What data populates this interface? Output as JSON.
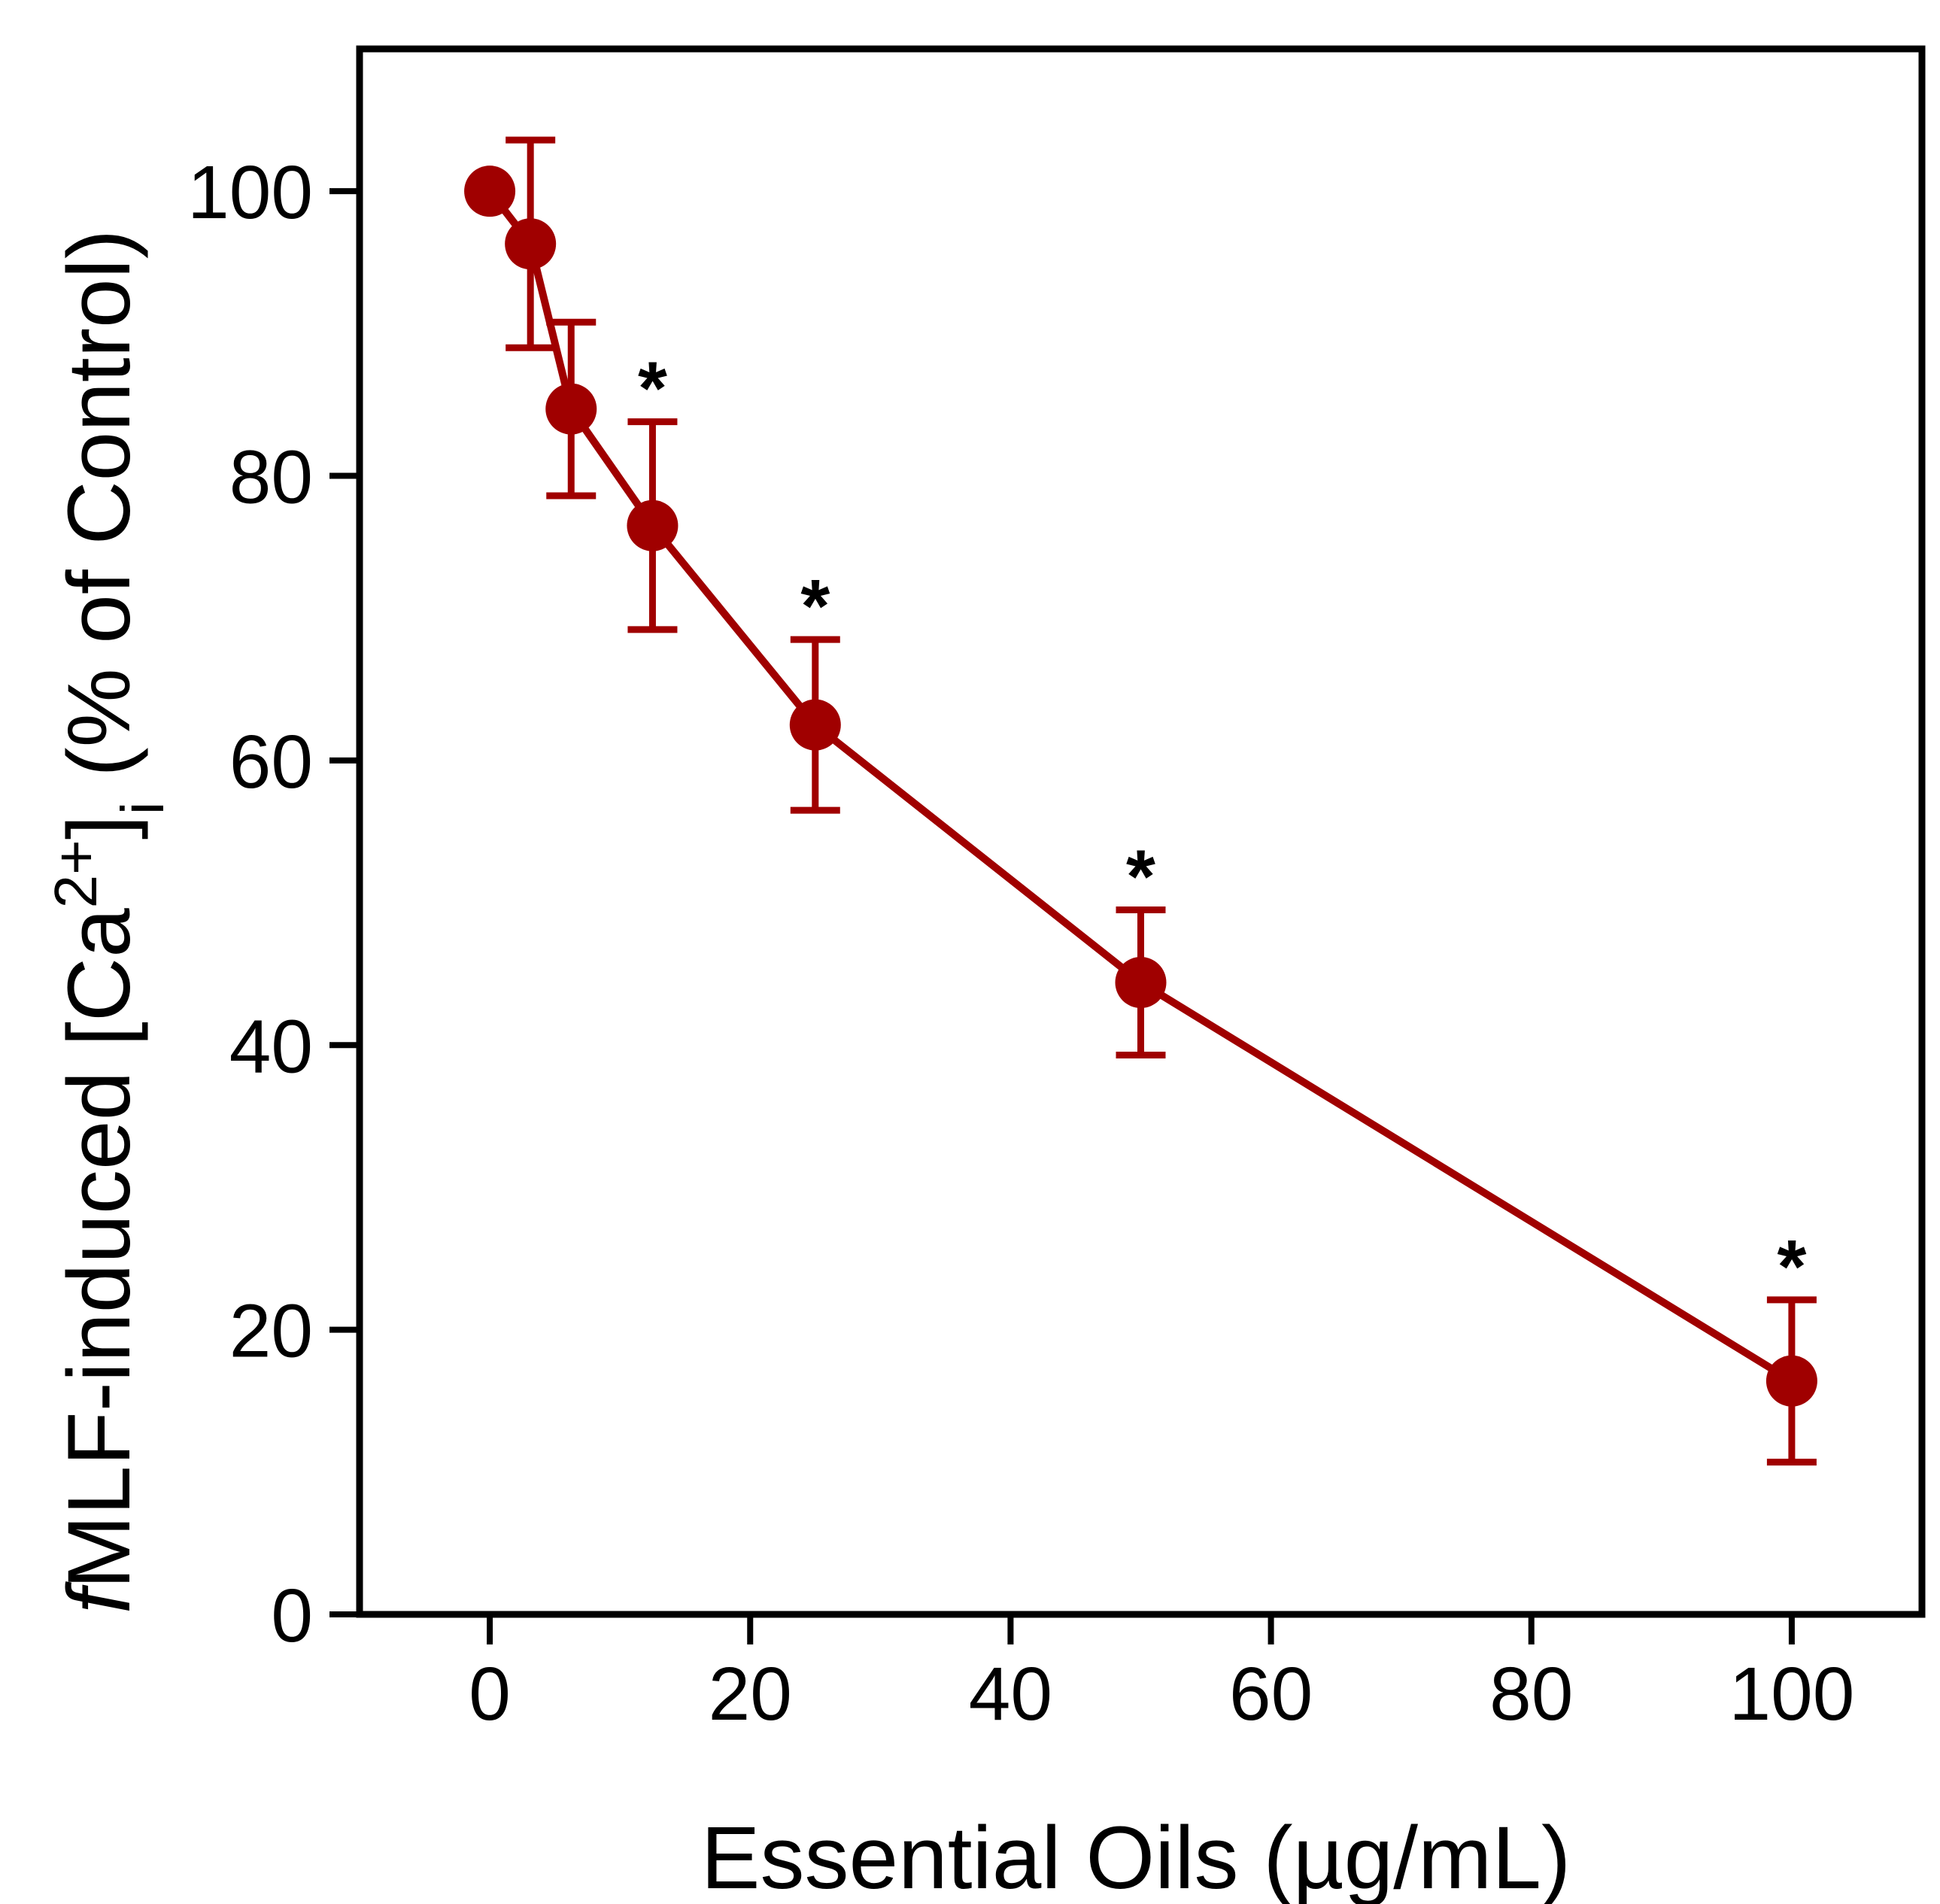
{
  "chart_data": {
    "type": "line",
    "title": "",
    "xlabel": "Essential Oils (µg/mL)",
    "ylabel": {
      "prefix": "f",
      "main": "MLF-induced [Ca",
      "superscript": "2+",
      "bracket": "]",
      "subscript": "i",
      "suffix": " (% of Control)"
    },
    "xlim": [
      -10,
      110
    ],
    "ylim": [
      0,
      110
    ],
    "xticks": [
      "0",
      "20",
      "40",
      "60",
      "80",
      "100"
    ],
    "yticks": [
      "0",
      "20",
      "40",
      "60",
      "80",
      "100"
    ],
    "xtick_values": [
      0,
      20,
      40,
      60,
      80,
      100
    ],
    "ytick_values": [
      0,
      20,
      40,
      60,
      80,
      100
    ],
    "grid": false,
    "color": "#a00000",
    "series": [
      {
        "name": "Essential Oils",
        "x": [
          0,
          3.125,
          6.25,
          12.5,
          25,
          50,
          100
        ],
        "y": [
          100,
          96.3,
          84.7,
          76.5,
          62.5,
          44.4,
          16.4
        ],
        "error": [
          0,
          7.3,
          6.1,
          7.3,
          6.0,
          5.1,
          5.7
        ],
        "significance": [
          "",
          "",
          "",
          "*",
          "*",
          "*",
          "*"
        ]
      }
    ]
  }
}
